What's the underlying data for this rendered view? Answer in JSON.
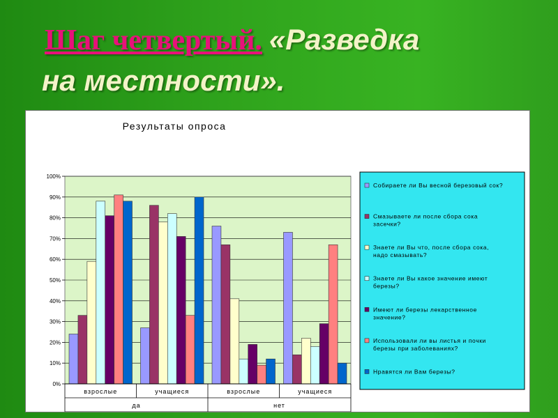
{
  "slide": {
    "title_step": "Шаг четвертый.",
    "title_rest": "«Разведка на местности».",
    "title_line2": "на местности»."
  },
  "colors": {
    "background": "#2fa31c",
    "plot_bg": "#dcf5c8",
    "legend_bg": "#33e6f0",
    "title_step": "#e8117a"
  },
  "chart_data": {
    "type": "bar",
    "title": "Результаты опроса",
    "categories": [
      "взрослые",
      "учащиеся",
      "взрослые",
      "учащиеся"
    ],
    "groups": [
      "да",
      "нет"
    ],
    "ylim": [
      0,
      100
    ],
    "yticks": [
      "0%",
      "10%",
      "20%",
      "30%",
      "40%",
      "50%",
      "60%",
      "70%",
      "80%",
      "90%",
      "100%"
    ],
    "legend_position": "right",
    "series": [
      {
        "name": "Собираете ли Вы весной березовый сок?",
        "color": "#9999ff",
        "values": [
          24,
          27,
          76,
          73
        ]
      },
      {
        "name": "Смазываете ли после сбора сока засечки?",
        "color": "#993366",
        "values": [
          33,
          86,
          67,
          14
        ]
      },
      {
        "name": "Знаете ли Вы что, после сбора сока, надо смазывать?",
        "color": "#ffffcc",
        "values": [
          59,
          78,
          41,
          22
        ]
      },
      {
        "name": "Знаете ли Вы какое значение имеют березы?",
        "color": "#ccffff",
        "values": [
          88,
          82,
          12,
          18
        ]
      },
      {
        "name": "Имеют ли березы лекарственное значение?",
        "color": "#660066",
        "values": [
          81,
          71,
          19,
          29
        ]
      },
      {
        "name": "Использовали ли вы листья и почки березы при заболеваниях?",
        "color": "#ff8080",
        "values": [
          91,
          33,
          9,
          67
        ]
      },
      {
        "name": "Нравятся ли Вам березы?",
        "color": "#0066cc",
        "values": [
          88,
          90,
          12,
          10
        ]
      }
    ]
  }
}
